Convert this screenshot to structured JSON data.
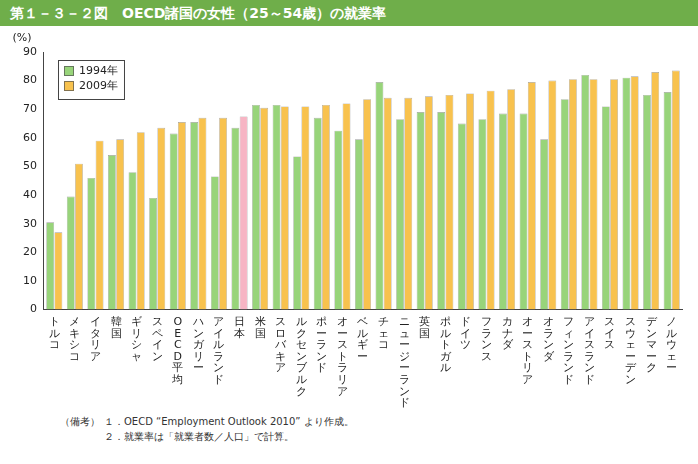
{
  "chart_data": {
    "type": "bar",
    "title": "第１－３－２図　OECD諸国の女性（25～54歳）の就業率",
    "ylabel": "(%)",
    "categories": [
      "トルコ",
      "メキシコ",
      "イタリア",
      "韓国",
      "ギリシャ",
      "スペイン",
      "OECD平均",
      "ハンガリー",
      "アイルランド",
      "日本",
      "米国",
      "スロバキア",
      "ルクセンブルク",
      "ポーランド",
      "オーストラリア",
      "ベルギー",
      "チェコ",
      "ニュージーランド",
      "英国",
      "ポルトガル",
      "ドイツ",
      "フランス",
      "カナダ",
      "オーストリア",
      "オランダ",
      "フィンランド",
      "アイスランド",
      "スイス",
      "スウェーデン",
      "デンマーク",
      "ノルウェー"
    ],
    "series": [
      {
        "name": "1994年",
        "color": "#98d47a",
        "values": [
          30.5,
          39.5,
          46,
          54,
          48,
          39,
          61.5,
          65.5,
          46.5,
          63.5,
          71.5,
          71.5,
          53.5,
          67,
          62.5,
          59.5,
          79.5,
          66.5,
          69,
          69,
          65,
          66.5,
          68.5,
          68.5,
          59.5,
          73.5,
          82,
          71,
          81,
          75,
          76
        ]
      },
      {
        "name": "2009年",
        "color": "#f8c24e",
        "colors": [
          "#f8c24e",
          "#f8c24e",
          "#f8c24e",
          "#f8c24e",
          "#f8c24e",
          "#f8c24e",
          "#f8c24e",
          "#f8c24e",
          "#f8c24e",
          "#f7b5c4",
          "#f8c24e",
          "#f8c24e",
          "#f8c24e",
          "#f8c24e",
          "#f8c24e",
          "#f8c24e",
          "#f8c24e",
          "#f8c24e",
          "#f8c24e",
          "#f8c24e",
          "#f8c24e",
          "#f8c24e",
          "#f8c24e",
          "#f8c24e",
          "#f8c24e",
          "#f8c24e",
          "#f8c24e",
          "#f8c24e",
          "#f8c24e",
          "#f8c24e",
          "#f8c24e"
        ],
        "values": [
          27,
          51,
          59,
          59.5,
          62,
          63.5,
          65.5,
          67,
          67,
          67.5,
          70.5,
          71,
          71,
          71.5,
          72,
          73.5,
          74,
          74,
          74.5,
          75,
          75.5,
          76.5,
          77,
          79.5,
          80,
          80.5,
          80.5,
          80.5,
          81.5,
          83,
          83.5
        ]
      }
    ],
    "ylim": [
      0,
      90
    ],
    "yticks": [
      0,
      10,
      20,
      30,
      40,
      50,
      60,
      70,
      80,
      90
    ],
    "grid": false,
    "legend": "upper left",
    "note_label": "（備考）",
    "notes": [
      "１．OECD “Employment Outlook 2010” より作成。",
      "２．就業率は「就業者数／人口」で計算。"
    ]
  }
}
